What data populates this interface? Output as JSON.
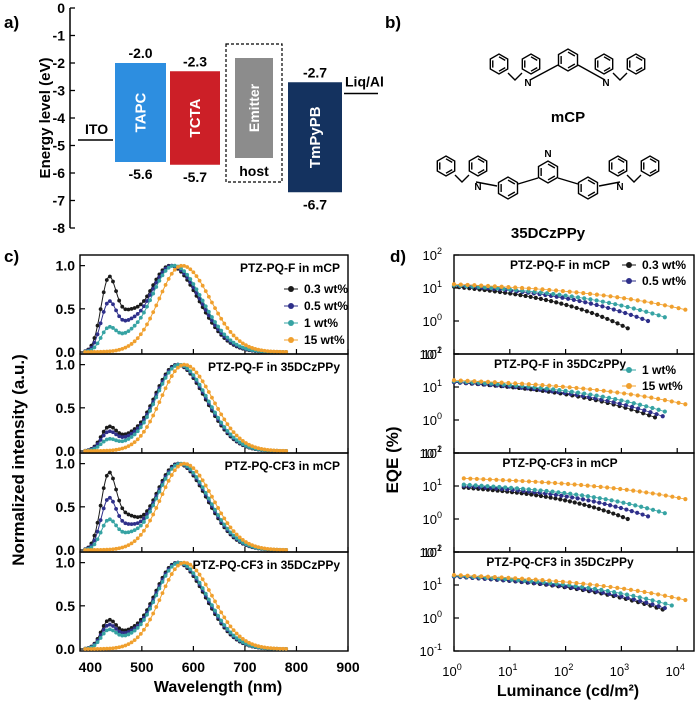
{
  "panel_labels": {
    "a": "a)",
    "b": "b)",
    "c": "c)",
    "d": "d)"
  },
  "energy_diagram": {
    "ylabel": "Energy level (eV)",
    "ylim": [
      -8,
      0
    ],
    "yticks": [
      "0",
      "-1",
      "-2",
      "-3",
      "-4",
      "-5",
      "-6",
      "-7",
      "-8"
    ],
    "ito": {
      "label": "ITO",
      "level": -4.8
    },
    "cathode": {
      "label": "Liq/Al",
      "level": -3.0
    },
    "layers": [
      {
        "name": "TAPC",
        "top": -2.0,
        "bottom": -5.6,
        "top_label": "-2.0",
        "bottom_label": "-5.6",
        "color": "#2d8ee0"
      },
      {
        "name": "TCTA",
        "top": -2.3,
        "bottom": -5.7,
        "top_label": "-2.3",
        "bottom_label": "-5.7",
        "color": "#cc1f27"
      },
      {
        "name": "Emitter",
        "box_label": "host",
        "color": "#8c8c8c"
      },
      {
        "name": "TmPyPB",
        "top": -2.7,
        "bottom": -6.7,
        "top_label": "-2.7",
        "bottom_label": "-6.7",
        "color": "#14325f"
      }
    ]
  },
  "structures": {
    "mol1": "mCP",
    "mol2": "35DCzPPy"
  },
  "chart_data": [
    {
      "type": "line",
      "panel": "c",
      "xlabel": "Wavelength (nm)",
      "ylabel": "Normalized intensity (a.u.)",
      "xlim": [
        380,
        900
      ],
      "ylim": [
        0,
        1.1
      ],
      "xticks": [
        "400",
        "500",
        "600",
        "700",
        "800",
        "900"
      ],
      "yticks": [
        "0.0",
        "0.5",
        "1.0"
      ],
      "legend": [
        "0.3 wt%",
        "0.5 wt%",
        "1 wt%",
        "15 wt%"
      ],
      "series_colors": [
        "#1a1a1a",
        "#2e2f8a",
        "#36a3a3",
        "#f0a02e"
      ],
      "subplots": [
        {
          "title": "PTZ-PQ-F in mCP",
          "series": [
            {
              "name": "0.3 wt%",
              "peak_nm": 555,
              "short_peak_nm": 435,
              "short_amp": 0.78
            },
            {
              "name": "0.5 wt%",
              "peak_nm": 558,
              "short_peak_nm": 435,
              "short_amp": 0.52
            },
            {
              "name": "1 wt%",
              "peak_nm": 562,
              "short_peak_nm": 435,
              "short_amp": 0.25
            },
            {
              "name": "15 wt%",
              "peak_nm": 578,
              "short_peak_nm": 435,
              "short_amp": 0.0
            }
          ]
        },
        {
          "title": "PTZ-PQ-F in 35DCzPPy",
          "series": [
            {
              "name": "0.3 wt%",
              "peak_nm": 568,
              "short_peak_nm": 435,
              "short_amp": 0.25
            },
            {
              "name": "0.5 wt%",
              "peak_nm": 570,
              "short_peak_nm": 435,
              "short_amp": 0.2
            },
            {
              "name": "1 wt%",
              "peak_nm": 572,
              "short_peak_nm": 435,
              "short_amp": 0.12
            },
            {
              "name": "15 wt%",
              "peak_nm": 582,
              "short_peak_nm": 435,
              "short_amp": 0.0
            }
          ]
        },
        {
          "title": "PTZ-PQ-CF3 in mCP",
          "series": [
            {
              "name": "0.3 wt%",
              "peak_nm": 570,
              "short_peak_nm": 435,
              "short_amp": 0.82
            },
            {
              "name": "0.5 wt%",
              "peak_nm": 572,
              "short_peak_nm": 435,
              "short_amp": 0.55
            },
            {
              "name": "1 wt%",
              "peak_nm": 574,
              "short_peak_nm": 435,
              "short_amp": 0.32
            },
            {
              "name": "15 wt%",
              "peak_nm": 582,
              "short_peak_nm": 435,
              "short_amp": 0.0
            }
          ]
        },
        {
          "title": "PTZ-PQ-CF3 in 35DCzPPy",
          "series": [
            {
              "name": "0.3 wt%",
              "peak_nm": 568,
              "short_peak_nm": 435,
              "short_amp": 0.3
            },
            {
              "name": "0.5 wt%",
              "peak_nm": 570,
              "short_peak_nm": 435,
              "short_amp": 0.25
            },
            {
              "name": "1 wt%",
              "peak_nm": 572,
              "short_peak_nm": 435,
              "short_amp": 0.2
            },
            {
              "name": "15 wt%",
              "peak_nm": 582,
              "short_peak_nm": 435,
              "short_amp": 0.0
            }
          ]
        }
      ]
    },
    {
      "type": "scatter",
      "panel": "d",
      "xlabel": "Luminance (cd/m²)",
      "ylabel": "EQE (%)",
      "xscale": "log",
      "yscale": "log",
      "xlim": [
        1,
        20000
      ],
      "ylim": [
        0.1,
        100
      ],
      "xtick_exps": [
        0,
        1,
        2,
        3,
        4
      ],
      "ytick_exps": [
        -1,
        0,
        1,
        2
      ],
      "legend_top": [
        "0.3 wt%",
        "0.5 wt%"
      ],
      "legend_second": [
        "1 wt%",
        "15 wt%"
      ],
      "series_colors": [
        "#1a1a1a",
        "#2e2f8a",
        "#36a3a3",
        "#f0a02e"
      ],
      "subplots": [
        {
          "title": "PTZ-PQ-F in mCP",
          "series": [
            {
              "name": "0.3 wt%",
              "x_start": 1,
              "x_end": 1300,
              "eqe_start": 11,
              "eqe_end": 0.6
            },
            {
              "name": "0.5 wt%",
              "x_start": 1,
              "x_end": 3000,
              "eqe_start": 12,
              "eqe_end": 1.0
            },
            {
              "name": "1 wt%",
              "x_start": 1,
              "x_end": 6000,
              "eqe_start": 12,
              "eqe_end": 1.3
            },
            {
              "name": "15 wt%",
              "x_start": 1,
              "x_end": 14000,
              "eqe_start": 13,
              "eqe_end": 2.2
            }
          ]
        },
        {
          "title": "PTZ-PQ-F in 35DCzPPy",
          "series": [
            {
              "name": "0.3 wt%",
              "x_start": 1,
              "x_end": 4000,
              "eqe_start": 14,
              "eqe_end": 1.2
            },
            {
              "name": "0.5 wt%",
              "x_start": 1,
              "x_end": 5500,
              "eqe_start": 14,
              "eqe_end": 1.3
            },
            {
              "name": "1 wt%",
              "x_start": 1,
              "x_end": 6000,
              "eqe_start": 15,
              "eqe_end": 1.8
            },
            {
              "name": "15 wt%",
              "x_start": 1,
              "x_end": 14000,
              "eqe_start": 16,
              "eqe_end": 3.0
            }
          ]
        },
        {
          "title": "PTZ-PQ-CF3 in mCP",
          "series": [
            {
              "name": "0.3 wt%",
              "x_start": 1.5,
              "x_end": 1300,
              "eqe_start": 9,
              "eqe_end": 1.0
            },
            {
              "name": "0.5 wt%",
              "x_start": 1.5,
              "x_end": 3000,
              "eqe_start": 10,
              "eqe_end": 1.2
            },
            {
              "name": "1 wt%",
              "x_start": 1.5,
              "x_end": 6000,
              "eqe_start": 11,
              "eqe_end": 1.5
            },
            {
              "name": "15 wt%",
              "x_start": 1.5,
              "x_end": 14000,
              "eqe_start": 17,
              "eqe_end": 4.0
            }
          ]
        },
        {
          "title": "PTZ-PQ-CF3 in 35DCzPPy",
          "series": [
            {
              "name": "0.3 wt%",
              "x_start": 1,
              "x_end": 5500,
              "eqe_start": 18,
              "eqe_end": 1.8
            },
            {
              "name": "0.5 wt%",
              "x_start": 1,
              "x_end": 6000,
              "eqe_start": 18,
              "eqe_end": 2.0
            },
            {
              "name": "1 wt%",
              "x_start": 1,
              "x_end": 8000,
              "eqe_start": 19,
              "eqe_end": 2.4
            },
            {
              "name": "15 wt%",
              "x_start": 1,
              "x_end": 14000,
              "eqe_start": 20,
              "eqe_end": 3.5
            }
          ]
        }
      ]
    }
  ]
}
